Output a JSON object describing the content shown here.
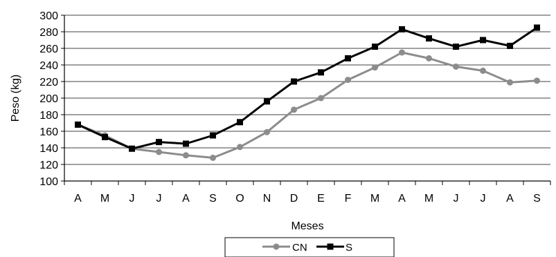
{
  "chart_data": {
    "type": "line",
    "xlabel": "Meses",
    "ylabel": "Peso (kg)",
    "ylim": [
      100,
      300
    ],
    "yticks": [
      100,
      120,
      140,
      160,
      180,
      200,
      220,
      240,
      260,
      280,
      300
    ],
    "grid": true,
    "legend_position": "bottom",
    "categories": [
      "A",
      "M",
      "J",
      "J",
      "A",
      "S",
      "O",
      "N",
      "D",
      "E",
      "F",
      "M",
      "A",
      "M",
      "J",
      "J",
      "A",
      "S"
    ],
    "series": [
      {
        "name": "CN",
        "color": "#8c8c8c",
        "marker": "circle",
        "values": [
          168,
          155,
          139,
          135,
          131,
          128,
          141,
          159,
          186,
          200,
          222,
          237,
          255,
          248,
          238,
          233,
          219,
          221
        ]
      },
      {
        "name": "S",
        "color": "#000000",
        "marker": "square",
        "values": [
          168,
          153,
          139,
          147,
          145,
          155,
          171,
          196,
          220,
          231,
          248,
          262,
          283,
          272,
          262,
          270,
          263,
          285
        ]
      }
    ]
  }
}
